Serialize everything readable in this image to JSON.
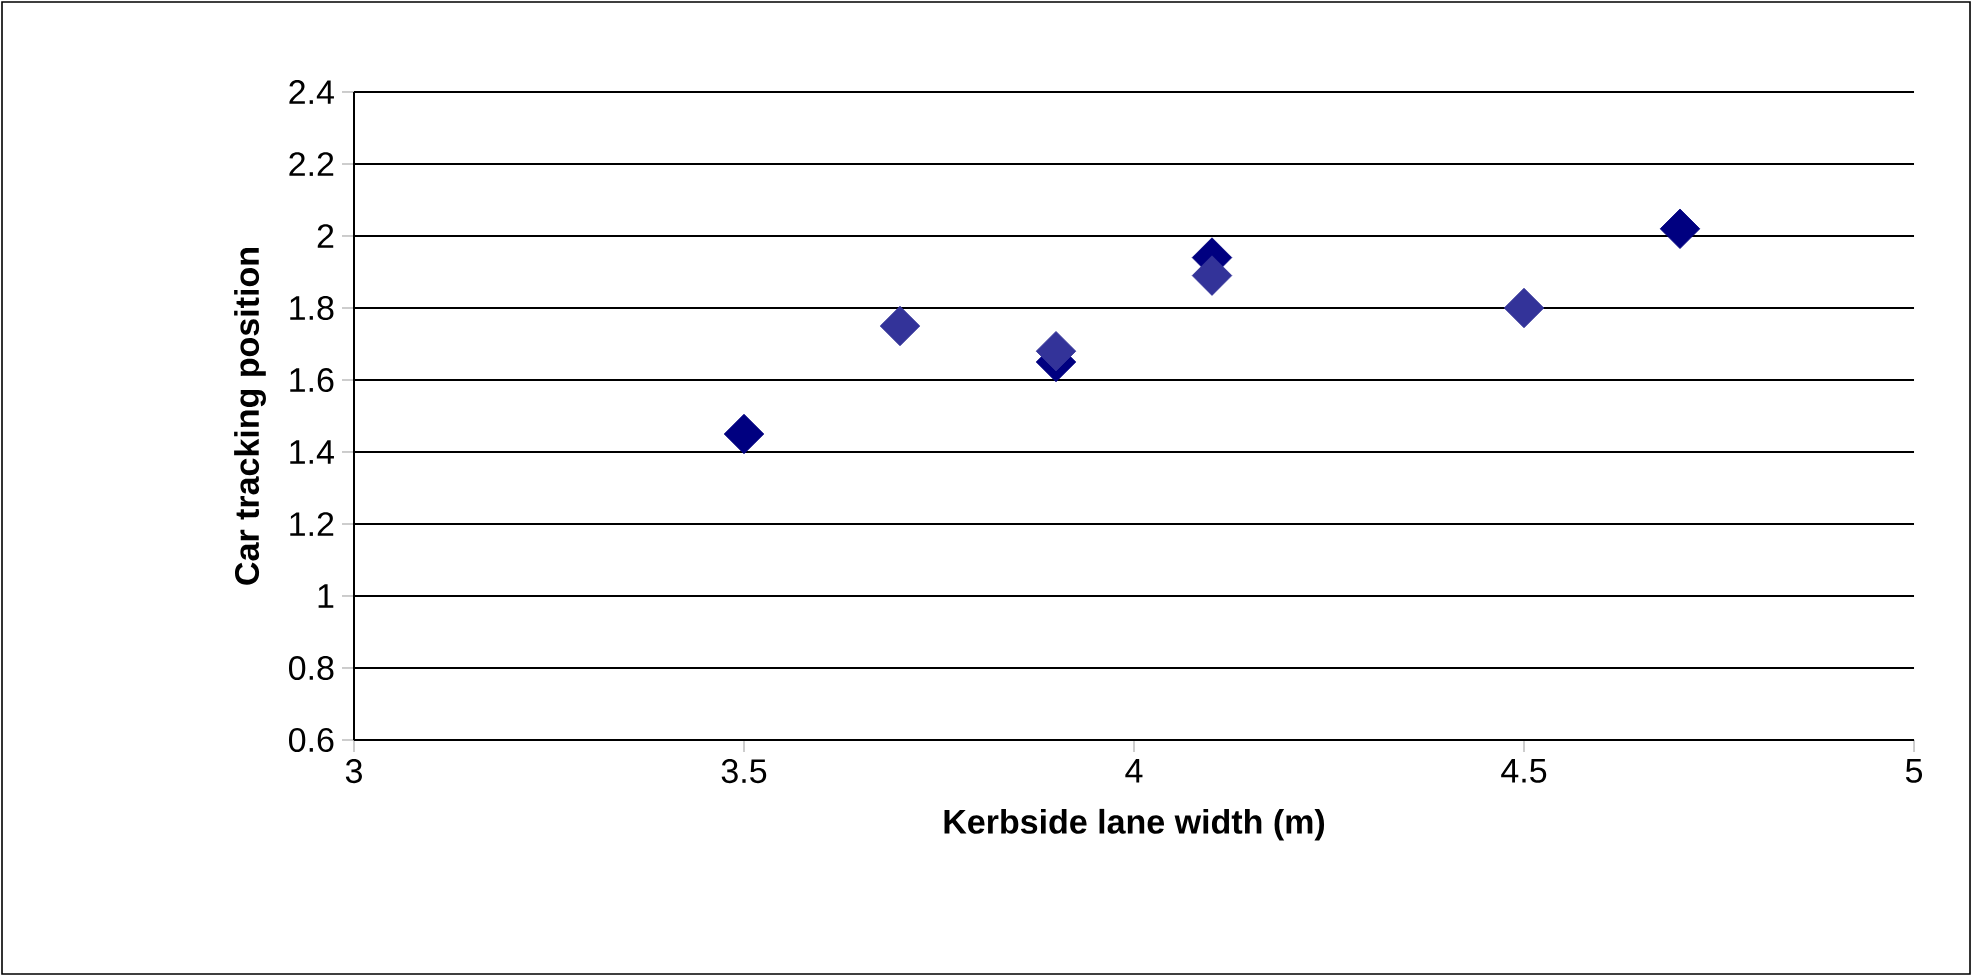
{
  "chart_data": {
    "type": "scatter",
    "xlabel": "Kerbside lane width (m)",
    "ylabel": "Car tracking position",
    "xlim": [
      3,
      5
    ],
    "xticks": [
      3,
      3.5,
      4,
      4.5,
      5
    ],
    "ylim": [
      0.6,
      2.4
    ],
    "yticks": [
      0.6,
      0.8,
      1,
      1.2,
      1.4,
      1.6,
      1.8,
      2,
      2.2,
      2.4
    ],
    "grid": "y",
    "marker": "diamond",
    "series": [
      {
        "color": "#000080",
        "x": [
          3.5,
          3.9,
          4.1,
          4.7
        ],
        "values": [
          1.45,
          1.65,
          1.94,
          2.02
        ]
      },
      {
        "color": "#333399",
        "x": [
          3.7,
          3.9,
          4.1,
          4.5
        ],
        "values": [
          1.75,
          1.68,
          1.89,
          1.8
        ]
      }
    ]
  }
}
